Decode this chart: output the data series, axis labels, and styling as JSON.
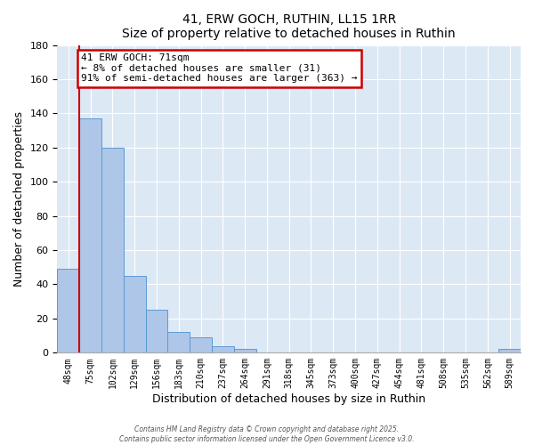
{
  "title": "41, ERW GOCH, RUTHIN, LL15 1RR",
  "subtitle": "Size of property relative to detached houses in Ruthin",
  "xlabel": "Distribution of detached houses by size in Ruthin",
  "ylabel": "Number of detached properties",
  "bin_labels": [
    "48sqm",
    "75sqm",
    "102sqm",
    "129sqm",
    "156sqm",
    "183sqm",
    "210sqm",
    "237sqm",
    "264sqm",
    "291sqm",
    "318sqm",
    "345sqm",
    "373sqm",
    "400sqm",
    "427sqm",
    "454sqm",
    "481sqm",
    "508sqm",
    "535sqm",
    "562sqm",
    "589sqm"
  ],
  "bar_values": [
    49,
    137,
    120,
    45,
    25,
    12,
    9,
    4,
    2,
    0,
    0,
    0,
    0,
    0,
    0,
    0,
    0,
    0,
    0,
    0,
    2
  ],
  "bar_color": "#aec6e8",
  "bar_edge_color": "#5b9bd5",
  "ylim": [
    0,
    180
  ],
  "yticks": [
    0,
    20,
    40,
    60,
    80,
    100,
    120,
    140,
    160,
    180
  ],
  "property_line_color": "#cc0000",
  "annotation_title": "41 ERW GOCH: 71sqm",
  "annotation_line1": "← 8% of detached houses are smaller (31)",
  "annotation_line2": "91% of semi-detached houses are larger (363) →",
  "annotation_box_color": "#cc0000",
  "background_color": "#dde8f5",
  "grid_color": "#ffffff",
  "footer1": "Contains HM Land Registry data © Crown copyright and database right 2025.",
  "footer2": "Contains public sector information licensed under the Open Government Licence v3.0."
}
